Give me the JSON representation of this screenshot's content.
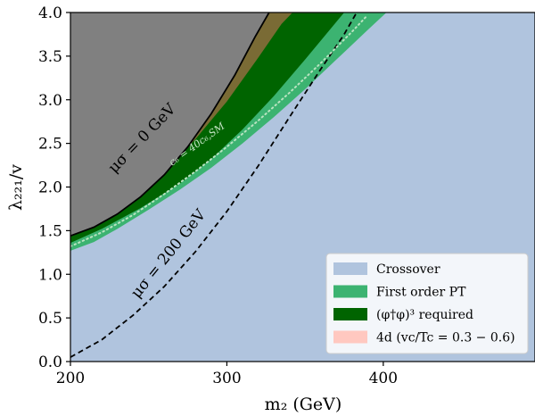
{
  "chart_data": {
    "type": "area",
    "xlabel": "m₂ (GeV)",
    "ylabel": "λ₂₂₁/v",
    "xlim": [
      200,
      497
    ],
    "ylim": [
      0,
      4
    ],
    "xticks": [
      200,
      300,
      400
    ],
    "yticks": [
      0.0,
      0.5,
      1.0,
      1.5,
      2.0,
      2.5,
      3.0,
      3.5,
      4.0
    ],
    "xtick_labels": [
      "200",
      "300",
      "400"
    ],
    "ytick_labels": [
      "0.0",
      "0.5",
      "1.0",
      "1.5",
      "2.0",
      "2.5",
      "3.0",
      "3.5",
      "4.0"
    ],
    "regions": [
      {
        "name": "Crossover",
        "color": "#b0c4de",
        "polygon": [
          [
            200,
            0
          ],
          [
            497,
            0
          ],
          [
            497,
            4
          ],
          [
            200,
            4
          ]
        ]
      },
      {
        "name": "First order PT",
        "color": "#3cb371",
        "polygon": [
          [
            200,
            1.27
          ],
          [
            215,
            1.37
          ],
          [
            230,
            1.52
          ],
          [
            250,
            1.74
          ],
          [
            270,
            1.97
          ],
          [
            290,
            2.22
          ],
          [
            310,
            2.5
          ],
          [
            330,
            2.8
          ],
          [
            350,
            3.12
          ],
          [
            370,
            3.46
          ],
          [
            390,
            3.8
          ],
          [
            402,
            4.0
          ],
          [
            200,
            4.0
          ]
        ]
      },
      {
        "name": "(φ†φ)³ required",
        "color": "#006400",
        "polygon": [
          [
            200,
            1.36
          ],
          [
            220,
            1.52
          ],
          [
            245,
            1.76
          ],
          [
            270,
            2.04
          ],
          [
            290,
            2.32
          ],
          [
            310,
            2.66
          ],
          [
            330,
            3.04
          ],
          [
            350,
            3.46
          ],
          [
            368,
            3.85
          ],
          [
            375,
            4.0
          ],
          [
            200,
            4.0
          ]
        ]
      },
      {
        "name": "",
        "color": "#7a6b35",
        "polygon": [
          [
            200,
            1.44
          ],
          [
            220,
            1.62
          ],
          [
            240,
            1.86
          ],
          [
            260,
            2.18
          ],
          [
            280,
            2.55
          ],
          [
            300,
            2.98
          ],
          [
            320,
            3.48
          ],
          [
            335,
            3.87
          ],
          [
            342,
            4.0
          ],
          [
            200,
            4.0
          ]
        ]
      },
      {
        "name": "",
        "color": "#808080",
        "polygon": [
          [
            200,
            1.44
          ],
          [
            215,
            1.54
          ],
          [
            230,
            1.69
          ],
          [
            245,
            1.89
          ],
          [
            260,
            2.14
          ],
          [
            275,
            2.46
          ],
          [
            290,
            2.84
          ],
          [
            305,
            3.28
          ],
          [
            318,
            3.72
          ],
          [
            327,
            4.0
          ],
          [
            200,
            4.0
          ]
        ]
      }
    ],
    "lines": [
      {
        "label": "μσ = 0 GeV",
        "style": "solid",
        "color": "#000000",
        "points": [
          [
            200,
            1.44
          ],
          [
            215,
            1.54
          ],
          [
            230,
            1.69
          ],
          [
            245,
            1.89
          ],
          [
            260,
            2.14
          ],
          [
            275,
            2.46
          ],
          [
            290,
            2.84
          ],
          [
            305,
            3.28
          ],
          [
            318,
            3.72
          ],
          [
            327,
            4.0
          ]
        ]
      },
      {
        "label": "μσ = 200 GeV",
        "style": "dashed",
        "color": "#000000",
        "points": [
          [
            200,
            0.05
          ],
          [
            220,
            0.25
          ],
          [
            240,
            0.53
          ],
          [
            260,
            0.86
          ],
          [
            280,
            1.26
          ],
          [
            300,
            1.72
          ],
          [
            320,
            2.24
          ],
          [
            340,
            2.8
          ],
          [
            360,
            3.35
          ],
          [
            375,
            3.75
          ],
          [
            383,
            4.0
          ]
        ]
      },
      {
        "label": "c₆ = 40c₆,SM",
        "style": "dotted",
        "color": "#b9e3c0",
        "points": [
          [
            200,
            1.32
          ],
          [
            220,
            1.48
          ],
          [
            240,
            1.68
          ],
          [
            260,
            1.92
          ],
          [
            280,
            2.18
          ],
          [
            300,
            2.46
          ],
          [
            320,
            2.76
          ],
          [
            340,
            3.08
          ],
          [
            360,
            3.42
          ],
          [
            380,
            3.78
          ],
          [
            390,
            3.97
          ]
        ]
      }
    ],
    "legend": {
      "placement": "bottom-right",
      "entries": [
        {
          "label": "Crossover",
          "color": "#b0c4de"
        },
        {
          "label": "First order PT",
          "color": "#3cb371"
        },
        {
          "label": "(φ†φ)³ required",
          "color": "#006400"
        },
        {
          "label": "4d (vc/Tc = 0.3 − 0.6)",
          "color": "#ffc8c0"
        }
      ]
    }
  }
}
